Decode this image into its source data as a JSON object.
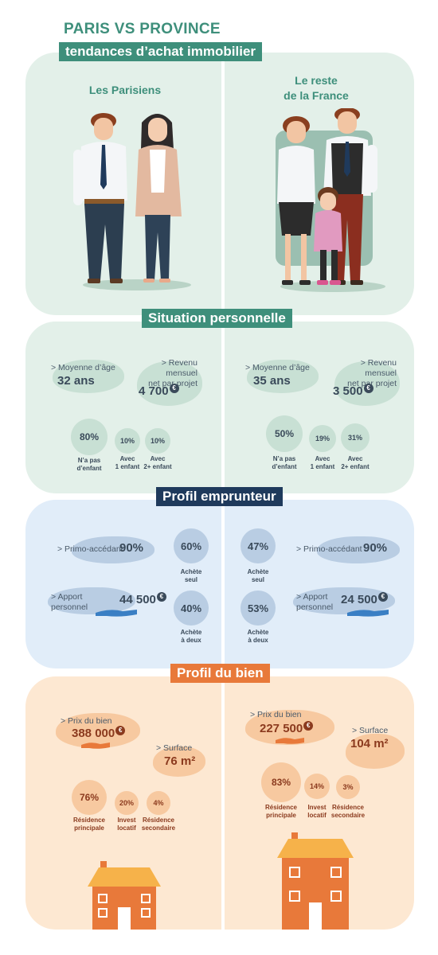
{
  "header": {
    "title": "PARIS VS PROVINCE",
    "subtitle": "tendances d’achat immobilier"
  },
  "intro": {
    "left_label": "Les Parisiens",
    "right_label_line1": "Le reste",
    "right_label_line2": "de la France"
  },
  "situation": {
    "banner": "Situation personnelle",
    "left": {
      "age_label": "> Moyenne d’âge",
      "age_value": "32 ans",
      "income_label_line1": "> Revenu mensuel",
      "income_label_line2": "net par projet",
      "income_value": "4 700",
      "currency": "€",
      "children": [
        {
          "pct": "80%",
          "line1": "N’a pas",
          "line2": "d’enfant"
        },
        {
          "pct": "10%",
          "line1": "Avec",
          "line2": "1 enfant"
        },
        {
          "pct": "10%",
          "line1": "Avec",
          "line2": "2+ enfant"
        }
      ]
    },
    "right": {
      "age_label": "> Moyenne d’âge",
      "age_value": "35 ans",
      "income_label_line1": "> Revenu mensuel",
      "income_label_line2": "net par projet",
      "income_value": "3 500",
      "currency": "€",
      "children": [
        {
          "pct": "50%",
          "line1": "N’a pas",
          "line2": "d’enfant"
        },
        {
          "pct": "19%",
          "line1": "Avec",
          "line2": "1 enfant"
        },
        {
          "pct": "31%",
          "line1": "Avec",
          "line2": "2+ enfant"
        }
      ]
    }
  },
  "emprunteur": {
    "banner": "Profil emprunteur",
    "left": {
      "primo_label": "> Primo-accédant",
      "primo_value": "90%",
      "apport_label_line1": "> Apport",
      "apport_label_line2": "personnel",
      "apport_value": "44 500",
      "currency": "€",
      "seul_pct": "60%",
      "seul_line1": "Achète",
      "seul_line2": "seul",
      "deux_pct": "40%",
      "deux_line1": "Achète",
      "deux_line2": "à deux"
    },
    "right": {
      "primo_label": "> Primo-accédant",
      "primo_value": "90%",
      "apport_label_line1": "> Apport",
      "apport_label_line2": "personnel",
      "apport_value": "24 500",
      "currency": "€",
      "seul_pct": "47%",
      "seul_line1": "Achète",
      "seul_line2": "seul",
      "deux_pct": "53%",
      "deux_line1": "Achète",
      "deux_line2": "à deux"
    }
  },
  "bien": {
    "banner": "Profil du bien",
    "left": {
      "prix_label": "> Prix du bien",
      "prix_value": "388 000",
      "currency": "€",
      "surface_label": "> Surface",
      "surface_value": "76 m²",
      "types": [
        {
          "pct": "76%",
          "line1": "Résidence",
          "line2": "principale"
        },
        {
          "pct": "20%",
          "line1": "Invest",
          "line2": "locatif"
        },
        {
          "pct": "4%",
          "line1": "Résidence",
          "line2": "secondaire"
        }
      ]
    },
    "right": {
      "prix_label": "> Prix du bien",
      "prix_value": "227 500",
      "currency": "€",
      "surface_label": "> Surface",
      "surface_value": "104 m²",
      "types": [
        {
          "pct": "83%",
          "line1": "Résidence",
          "line2": "principale"
        },
        {
          "pct": "14%",
          "line1": "Invest",
          "line2": "locatif"
        },
        {
          "pct": "3%",
          "line1": "Résidence",
          "line2": "secondaire"
        }
      ]
    }
  },
  "colors": {
    "teal": "#3e8f7b",
    "navy": "#1f3a5c",
    "orange": "#e8793a",
    "brown": "#8b3a1e"
  }
}
